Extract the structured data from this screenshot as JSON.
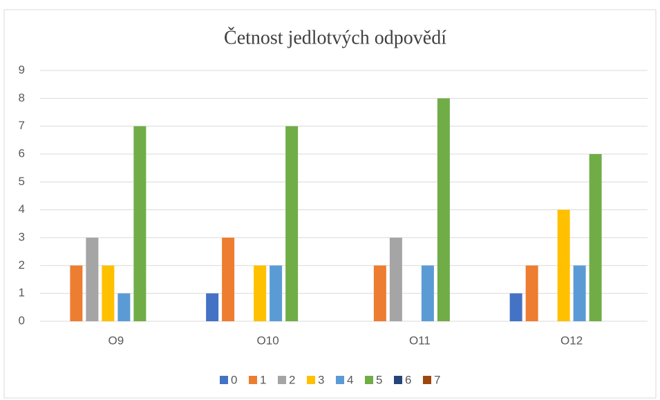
{
  "chart_data": {
    "type": "bar",
    "title": "Četnost jedlotvých odpovědí",
    "categories": [
      "O9",
      "O10",
      "O11",
      "O12"
    ],
    "series": [
      {
        "name": "0",
        "color": "#4472c4",
        "values": [
          0,
          1,
          0,
          1
        ]
      },
      {
        "name": "1",
        "color": "#ed7d31",
        "values": [
          2,
          3,
          2,
          2
        ]
      },
      {
        "name": "2",
        "color": "#a5a5a5",
        "values": [
          3,
          0,
          3,
          0
        ]
      },
      {
        "name": "3",
        "color": "#ffc000",
        "values": [
          2,
          2,
          0,
          4
        ]
      },
      {
        "name": "4",
        "color": "#5b9bd5",
        "values": [
          1,
          2,
          2,
          2
        ]
      },
      {
        "name": "5",
        "color": "#70ad47",
        "values": [
          7,
          7,
          8,
          6
        ]
      },
      {
        "name": "6",
        "color": "#264478",
        "values": [
          0,
          0,
          0,
          0
        ]
      },
      {
        "name": "7",
        "color": "#9e480e",
        "values": [
          0,
          0,
          0,
          0
        ]
      }
    ],
    "ylim": [
      0,
      9
    ],
    "yticks": [
      0,
      1,
      2,
      3,
      4,
      5,
      6,
      7,
      8,
      9
    ],
    "grid": true,
    "legend": "bottom"
  }
}
